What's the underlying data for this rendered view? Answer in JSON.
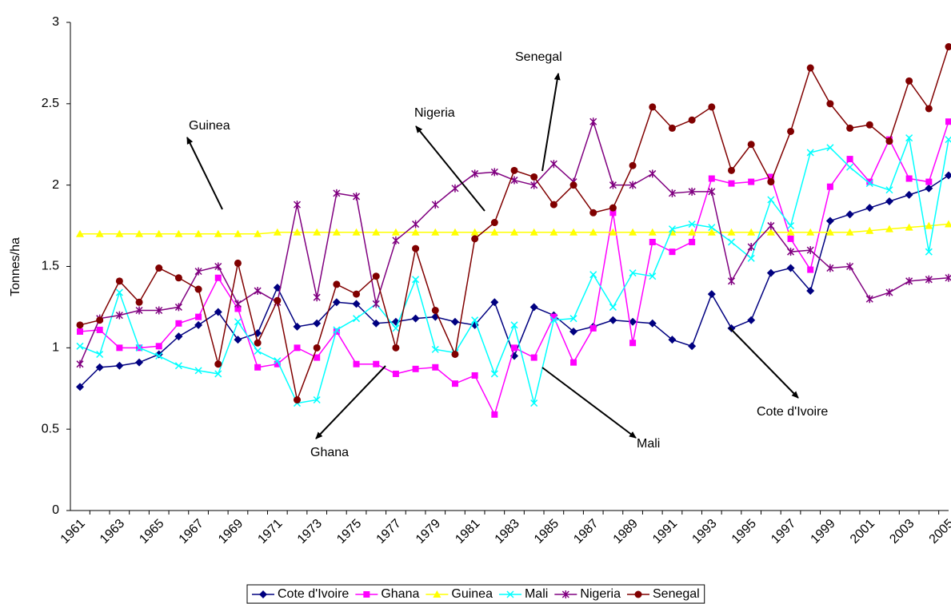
{
  "chart_data": {
    "type": "line",
    "y_label": "Tonnes/ha",
    "categories": [
      "1961",
      null,
      "1963",
      null,
      "1965",
      null,
      "1967",
      null,
      "1969",
      null,
      "1971",
      null,
      "1973",
      null,
      "1975",
      null,
      "1977",
      null,
      "1979",
      null,
      "1981",
      null,
      "1983",
      null,
      "1985",
      null,
      "1987",
      null,
      "1989",
      null,
      "1991",
      null,
      "1993",
      null,
      "1995",
      null,
      "1997",
      null,
      "1999",
      null,
      "2001",
      null,
      "2003",
      null,
      "2005"
    ],
    "ylim": [
      0,
      3
    ],
    "yticks": [
      0,
      0.5,
      1,
      1.5,
      2,
      2.5,
      3
    ],
    "legend": "bottom",
    "series": [
      {
        "name": "Cote d'Ivoire",
        "color": "#000080",
        "marker": "diamond",
        "values": [
          0.76,
          0.88,
          0.89,
          0.91,
          0.96,
          1.07,
          1.14,
          1.22,
          1.05,
          1.09,
          1.37,
          1.13,
          1.15,
          1.28,
          1.27,
          1.15,
          1.16,
          1.18,
          1.19,
          1.16,
          1.14,
          1.28,
          0.95,
          1.25,
          1.2,
          1.1,
          1.13,
          1.17,
          1.16,
          1.15,
          1.05,
          1.01,
          1.33,
          1.12,
          1.17,
          1.46,
          1.49,
          1.35,
          1.78,
          1.82,
          1.86,
          1.9,
          1.94,
          1.98,
          2.06
        ]
      },
      {
        "name": "Ghana",
        "color": "#ff00ff",
        "marker": "square",
        "values": [
          1.1,
          1.11,
          1.0,
          1.0,
          1.01,
          1.15,
          1.19,
          1.43,
          1.24,
          0.88,
          0.9,
          1.0,
          0.94,
          1.1,
          0.9,
          0.9,
          0.84,
          0.87,
          0.88,
          0.78,
          0.83,
          0.59,
          1.0,
          0.94,
          1.19,
          0.91,
          1.12,
          1.83,
          1.03,
          1.65,
          1.59,
          1.65,
          2.04,
          2.01,
          2.02,
          2.05,
          1.67,
          1.48,
          1.99,
          2.16,
          2.02,
          2.28,
          2.04,
          2.02,
          2.39
        ]
      },
      {
        "name": "Guinea",
        "color": "#ffff00",
        "marker": "triangle",
        "values": [
          1.7,
          1.7,
          1.7,
          1.7,
          1.7,
          1.7,
          1.7,
          1.7,
          1.7,
          1.7,
          1.71,
          1.71,
          1.71,
          1.71,
          1.71,
          1.71,
          1.71,
          1.71,
          1.71,
          1.71,
          1.71,
          1.71,
          1.71,
          1.71,
          1.71,
          1.71,
          1.71,
          1.71,
          1.71,
          1.71,
          1.71,
          1.71,
          1.71,
          1.71,
          1.71,
          1.71,
          1.71,
          1.71,
          1.71,
          1.71,
          1.72,
          1.73,
          1.74,
          1.75,
          1.76
        ]
      },
      {
        "name": "Mali",
        "color": "#00ffff",
        "marker": "x",
        "values": [
          1.01,
          0.96,
          1.34,
          1.0,
          0.95,
          0.89,
          0.86,
          0.84,
          1.16,
          0.98,
          0.92,
          0.66,
          0.68,
          1.11,
          1.18,
          1.27,
          1.12,
          1.42,
          0.99,
          0.97,
          1.17,
          0.84,
          1.14,
          0.66,
          1.17,
          1.18,
          1.45,
          1.25,
          1.46,
          1.44,
          1.73,
          1.76,
          1.74,
          1.65,
          1.55,
          1.91,
          1.75,
          2.2,
          2.23,
          2.11,
          2.01,
          1.97,
          2.29,
          1.59,
          2.28
        ]
      },
      {
        "name": "Nigeria",
        "color": "#800080",
        "marker": "star",
        "values": [
          0.9,
          1.18,
          1.2,
          1.23,
          1.23,
          1.25,
          1.47,
          1.5,
          1.27,
          1.35,
          1.28,
          1.88,
          1.31,
          1.95,
          1.93,
          1.27,
          1.66,
          1.76,
          1.88,
          1.98,
          2.07,
          2.08,
          2.03,
          2.0,
          2.13,
          2.02,
          2.39,
          2.0,
          2.0,
          2.07,
          1.95,
          1.96,
          1.96,
          1.41,
          1.62,
          1.75,
          1.59,
          1.6,
          1.49,
          1.5,
          1.3,
          1.34,
          1.41,
          1.42,
          1.43
        ]
      },
      {
        "name": "Senegal",
        "color": "#800000",
        "marker": "circle",
        "values": [
          1.14,
          1.17,
          1.41,
          1.28,
          1.49,
          1.43,
          1.36,
          0.9,
          1.52,
          1.03,
          1.29,
          0.68,
          1.0,
          1.39,
          1.33,
          1.44,
          1.0,
          1.61,
          1.23,
          0.96,
          1.67,
          1.77,
          2.09,
          2.05,
          1.88,
          2.0,
          1.83,
          1.86,
          2.12,
          2.48,
          2.35,
          2.4,
          2.48,
          2.09,
          2.25,
          2.02,
          2.33,
          2.72,
          2.5,
          2.35,
          2.37,
          2.27,
          2.64,
          2.47,
          2.85
        ]
      }
    ],
    "annotations": [
      "Guinea",
      "Nigeria",
      "Senegal",
      "Ghana",
      "Mali",
      "Cote d'Ivoire"
    ]
  }
}
